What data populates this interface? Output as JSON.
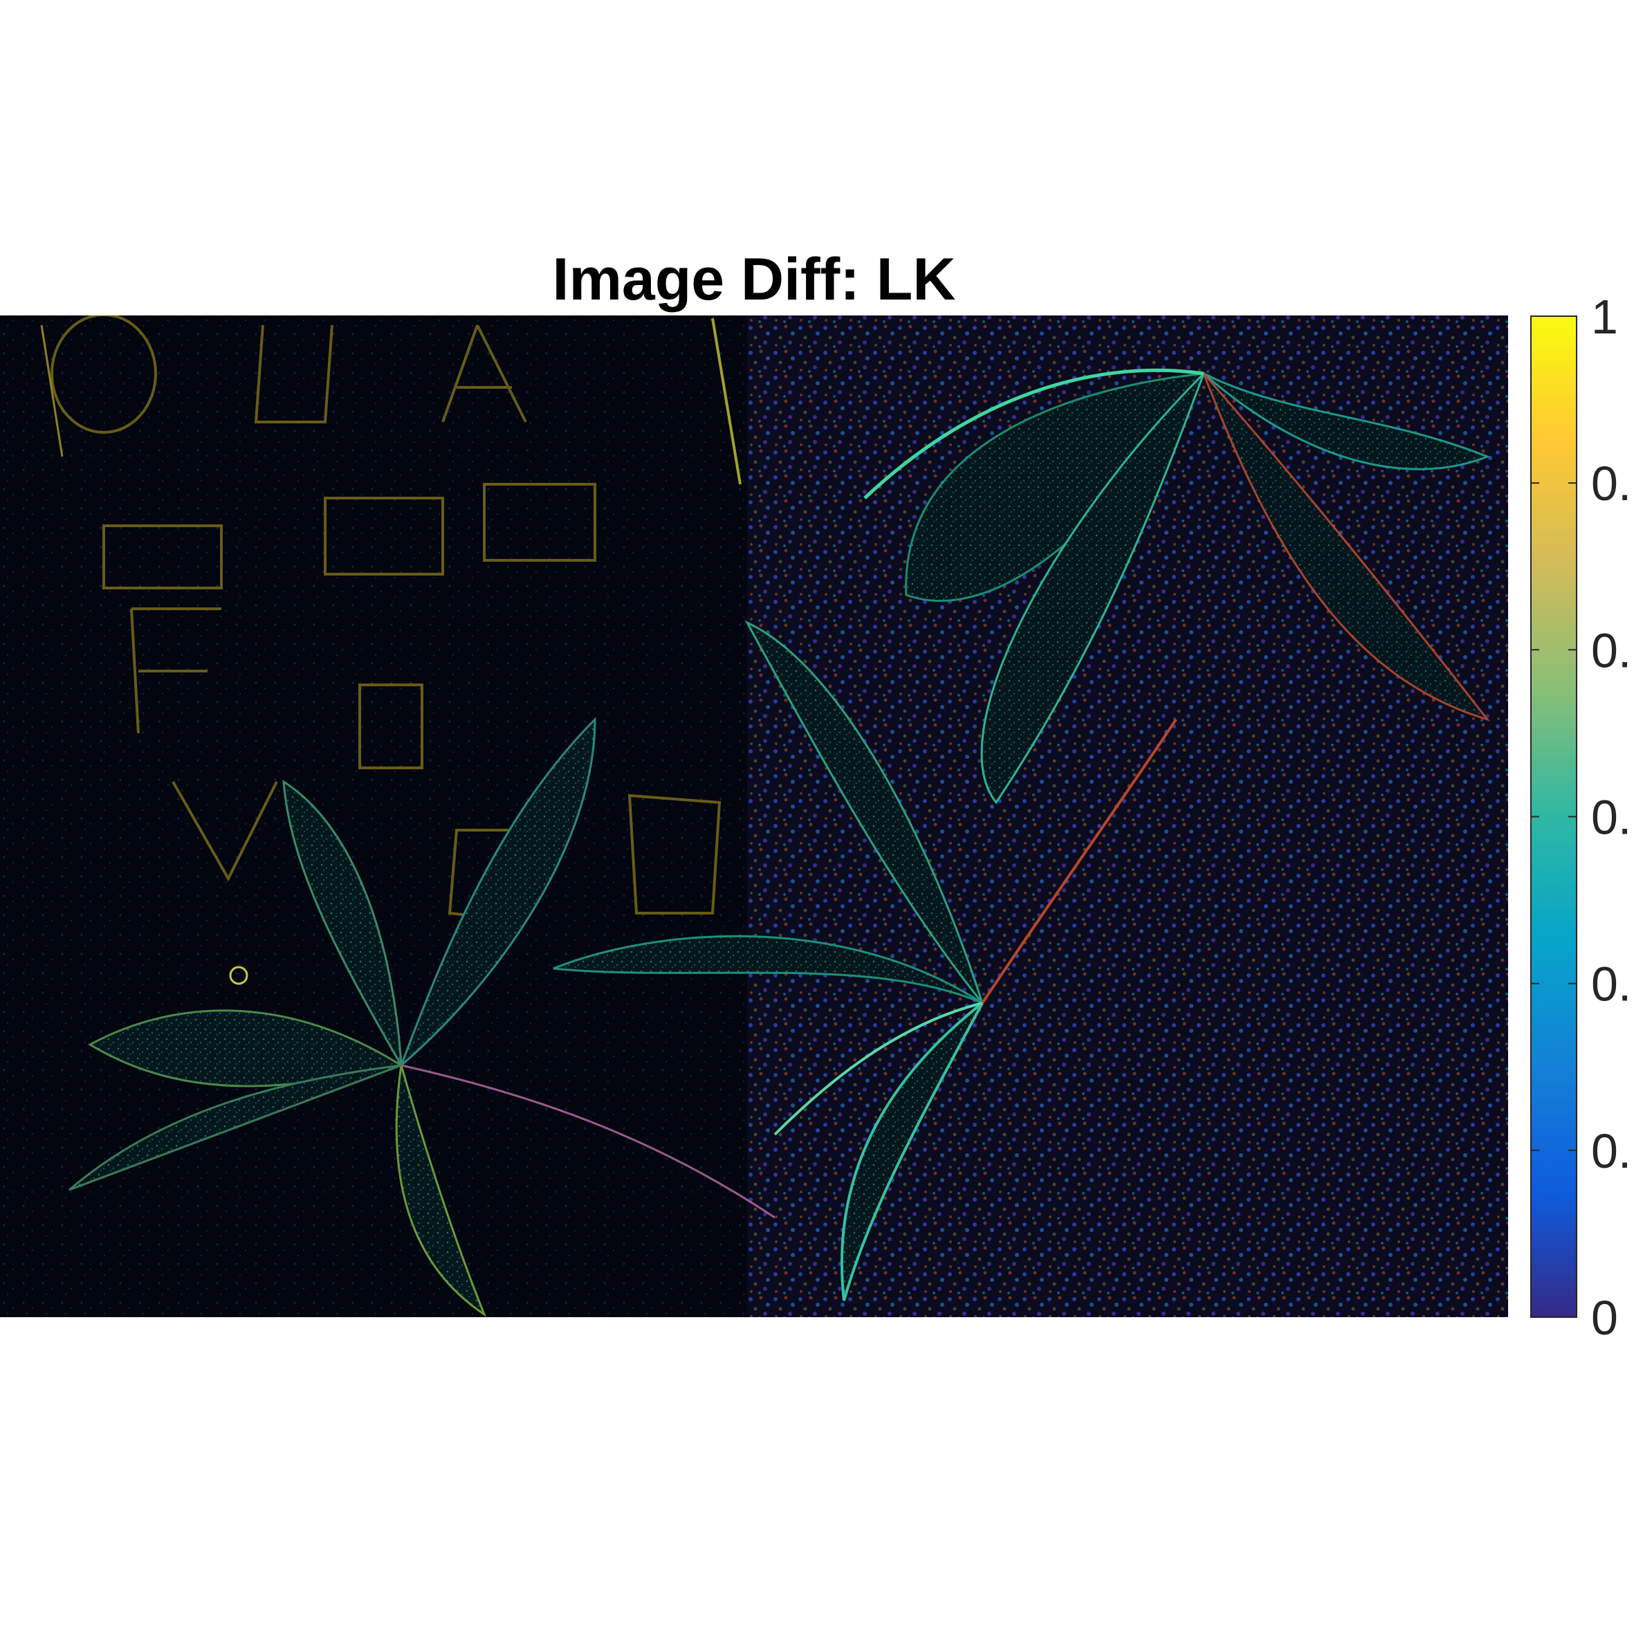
{
  "chart_data": {
    "type": "heatmap",
    "title": "Image Diff: LK",
    "xlabel": "",
    "ylabel": "",
    "colorbar": {
      "colormap": "parula",
      "range": [
        0,
        1
      ],
      "ticks": [
        0,
        0.1667,
        0.3333,
        0.5,
        0.6667,
        0.8333,
        1
      ],
      "tick_labels": [
        "0",
        "0.",
        "0.",
        "0.",
        "0.",
        "0.",
        "1"
      ]
    },
    "colors": {
      "image_background": "#02040d",
      "parula_stops": [
        "#352a87",
        "#0f5cdd",
        "#1481d6",
        "#06a4ca",
        "#2eb7a4",
        "#87bf77",
        "#d1bb59",
        "#fec832",
        "#f9fb0e"
      ]
    },
    "image_description_regions": [
      {
        "region": "left",
        "level": 0.1
      },
      {
        "region": "right",
        "level": 0.3
      }
    ]
  }
}
